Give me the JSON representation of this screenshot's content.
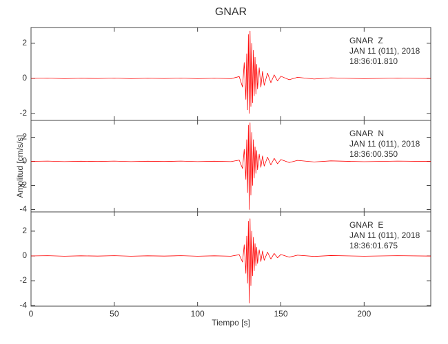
{
  "chart_data": [
    {
      "type": "line",
      "title": "GNAR",
      "color": "#ff0000",
      "annotations": [
        "GNAR  Z",
        "JAN 11 (011), 2018",
        "18:36:01.810"
      ],
      "xlim": [
        0,
        240
      ],
      "ylim": [
        -2.4,
        2.9
      ],
      "yticks": [
        -2,
        0,
        2
      ],
      "x": [
        0,
        10,
        20,
        30,
        40,
        50,
        60,
        70,
        80,
        90,
        100,
        110,
        120,
        125,
        127,
        128,
        129,
        129.5,
        130,
        130.5,
        131,
        131.5,
        132,
        132.5,
        133,
        133.5,
        134,
        134.5,
        135,
        135.5,
        136,
        137,
        138,
        139,
        140,
        142,
        144,
        146,
        148,
        150,
        155,
        160,
        170,
        180,
        200,
        220,
        240
      ],
      "values": [
        0,
        0.02,
        -0.02,
        0.01,
        -0.01,
        0.02,
        -0.02,
        0.01,
        -0.01,
        0.02,
        -0.02,
        0.01,
        -0.02,
        0.1,
        -0.5,
        0.9,
        -1.2,
        1.4,
        -1.8,
        2.5,
        -2.0,
        2.7,
        -1.6,
        2.0,
        -1.4,
        1.6,
        -1.0,
        1.2,
        -0.9,
        0.8,
        -0.6,
        0.6,
        -0.5,
        0.4,
        -0.4,
        0.3,
        -0.25,
        0.2,
        -0.15,
        0.12,
        -0.08,
        0.06,
        -0.04,
        0.03,
        -0.02,
        0.02,
        -0.01
      ]
    },
    {
      "type": "line",
      "y_label": "Amplitud [cm/s/s]",
      "color": "#ff0000",
      "annotations": [
        "GNAR  N",
        "JAN 11 (011), 2018",
        "18:36:00.350"
      ],
      "xlim": [
        0,
        240
      ],
      "ylim": [
        -4.2,
        3.4
      ],
      "yticks": [
        -4,
        -2,
        0,
        2
      ],
      "x": [
        0,
        10,
        20,
        30,
        40,
        50,
        60,
        70,
        80,
        90,
        100,
        110,
        120,
        125,
        127,
        128,
        129,
        129.5,
        130,
        130.5,
        131,
        131.5,
        132,
        132.5,
        133,
        133.5,
        134,
        134.5,
        135,
        135.5,
        136,
        137,
        138,
        139,
        140,
        142,
        144,
        146,
        148,
        150,
        155,
        160,
        170,
        180,
        200,
        220,
        240
      ],
      "values": [
        0,
        0.02,
        -0.02,
        0.01,
        -0.01,
        0.02,
        -0.02,
        0.01,
        -0.01,
        0.02,
        -0.02,
        0.01,
        -0.02,
        0.1,
        -0.6,
        1.0,
        -1.5,
        1.8,
        -2.6,
        3.0,
        -4.0,
        3.2,
        -2.8,
        2.4,
        -2.0,
        1.8,
        -1.4,
        1.2,
        -1.0,
        0.9,
        -0.7,
        0.6,
        -0.5,
        0.45,
        -0.4,
        0.35,
        -0.3,
        0.25,
        -0.2,
        0.15,
        -0.1,
        0.08,
        -0.05,
        0.04,
        -0.03,
        0.02,
        -0.01
      ]
    },
    {
      "type": "line",
      "x_label": "Tiempo [s]",
      "color": "#ff0000",
      "annotations": [
        "GNAR  E",
        "JAN 11 (011), 2018",
        "18:36:01.675"
      ],
      "xlim": [
        0,
        240
      ],
      "xticks": [
        0,
        50,
        100,
        150,
        200
      ],
      "ylim": [
        -4.05,
        3.55
      ],
      "yticks": [
        -4,
        -2,
        0,
        2
      ],
      "x": [
        0,
        10,
        20,
        30,
        40,
        50,
        60,
        70,
        80,
        90,
        100,
        110,
        120,
        125,
        127,
        128,
        129,
        129.5,
        130,
        130.5,
        131,
        131.5,
        132,
        132.5,
        133,
        133.5,
        134,
        134.5,
        135,
        135.5,
        136,
        137,
        138,
        139,
        140,
        142,
        144,
        146,
        148,
        150,
        155,
        160,
        170,
        180,
        200,
        220,
        240
      ],
      "values": [
        0,
        0.02,
        -0.02,
        0.01,
        -0.01,
        0.02,
        -0.02,
        0.01,
        -0.01,
        0.02,
        -0.02,
        0.01,
        -0.02,
        0.1,
        -0.5,
        0.9,
        -1.4,
        1.6,
        -2.2,
        2.8,
        -3.8,
        3.0,
        -2.4,
        2.0,
        -1.6,
        1.5,
        -1.2,
        1.0,
        -0.8,
        0.7,
        -0.6,
        0.5,
        -0.45,
        0.4,
        -0.35,
        0.3,
        -0.25,
        0.2,
        -0.15,
        0.12,
        -0.1,
        0.06,
        -0.04,
        0.03,
        -0.02,
        0.02,
        -0.01
      ]
    }
  ]
}
